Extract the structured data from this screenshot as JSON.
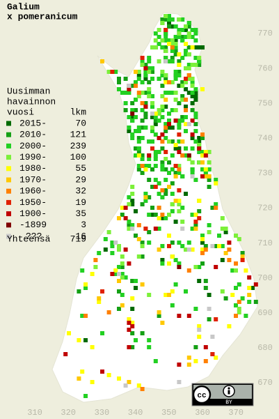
{
  "title": [
    "Galium",
    "x pomeranicum"
  ],
  "legend": {
    "header": [
      "Uusimman",
      "havainnon"
    ],
    "year_header": "vuosi",
    "count_header": "lkm",
    "items": [
      {
        "label": "2015-",
        "count": 70,
        "color": "#006a00"
      },
      {
        "label": "2010-",
        "count": 121,
        "color": "#15a015"
      },
      {
        "label": "2000-",
        "count": 239,
        "color": "#22d022"
      },
      {
        "label": "1990-",
        "count": 100,
        "color": "#7cf03a"
      },
      {
        "label": "1980-",
        "count": 55,
        "color": "#ffff00"
      },
      {
        "label": "1970-",
        "count": 29,
        "color": "#ffc800"
      },
      {
        "label": "1960-",
        "count": 32,
        "color": "#ff8000"
      },
      {
        "label": "1950-",
        "count": 19,
        "color": "#e02000"
      },
      {
        "label": "1900-",
        "count": 35,
        "color": "#c00000"
      },
      {
        "label": "-1899",
        "count": 3,
        "color": "#800000"
      },
      {
        "label": "???",
        "count": 16,
        "color": "#c8c8c8"
      }
    ],
    "total_label": "Yhteensä",
    "total": 719
  },
  "grid_y": [
    670,
    680,
    690,
    700,
    710,
    720,
    730,
    740,
    750,
    760,
    770
  ],
  "grid_x": [
    310,
    320,
    330,
    340,
    350,
    360,
    370
  ],
  "cc_badge": {
    "logo": "cc",
    "label": "BY"
  }
}
